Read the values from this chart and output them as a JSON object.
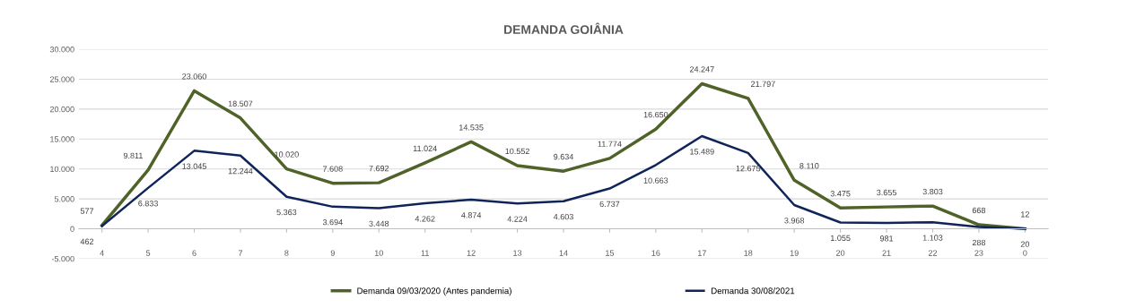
{
  "chart_data": {
    "type": "line",
    "title": "DEMANDA GOIÂNIA",
    "categories": [
      "4",
      "5",
      "6",
      "7",
      "8",
      "9",
      "10",
      "11",
      "12",
      "13",
      "14",
      "15",
      "16",
      "17",
      "18",
      "19",
      "20",
      "21",
      "22",
      "23",
      "0"
    ],
    "series": [
      {
        "name": "Demanda 09/03/2020 (Antes pandemia)",
        "color": "#4f6228",
        "values": [
          577,
          9811,
          23060,
          18507,
          10020,
          7608,
          7692,
          11024,
          14535,
          10552,
          9634,
          11774,
          16650,
          24247,
          21797,
          8110,
          3475,
          3655,
          3803,
          668,
          12
        ],
        "value_labels": [
          "577",
          "9.811",
          "23.060",
          "18.507",
          "10.020",
          "7.608",
          "7.692",
          "11.024",
          "14.535",
          "10.552",
          "9.634",
          "11.774",
          "16.650",
          "24.247",
          "21.797",
          "8.110",
          "3.475",
          "3.655",
          "3.803",
          "668",
          "12"
        ]
      },
      {
        "name": "Demanda 30/08/2021",
        "color": "#0f2559",
        "values": [
          462,
          6833,
          13045,
          12244,
          5363,
          3694,
          3448,
          4262,
          4874,
          4224,
          4603,
          6737,
          10663,
          15489,
          12675,
          3968,
          1055,
          981,
          1103,
          288,
          20
        ],
        "value_labels": [
          "462",
          "6.833",
          "13.045",
          "12.244",
          "5.363",
          "3.694",
          "3.448",
          "4.262",
          "4.874",
          "4.224",
          "4.603",
          "6.737",
          "10.663",
          "15.489",
          "12.675",
          "3.968",
          "1.055",
          "981",
          "1.103",
          "288",
          "20"
        ]
      }
    ],
    "ylim": [
      -5000,
      30000
    ],
    "yticks": [
      {
        "value": -5000,
        "label": "-5.000"
      },
      {
        "value": 0,
        "label": "0"
      },
      {
        "value": 5000,
        "label": "5.000"
      },
      {
        "value": 10000,
        "label": "10.000"
      },
      {
        "value": 15000,
        "label": "15.000"
      },
      {
        "value": 20000,
        "label": "20.000"
      },
      {
        "value": 25000,
        "label": "25.000"
      },
      {
        "value": 30000,
        "label": "30.000"
      }
    ],
    "grid": "y",
    "legend": "bottom",
    "marker": "none",
    "line_style": "solid"
  }
}
